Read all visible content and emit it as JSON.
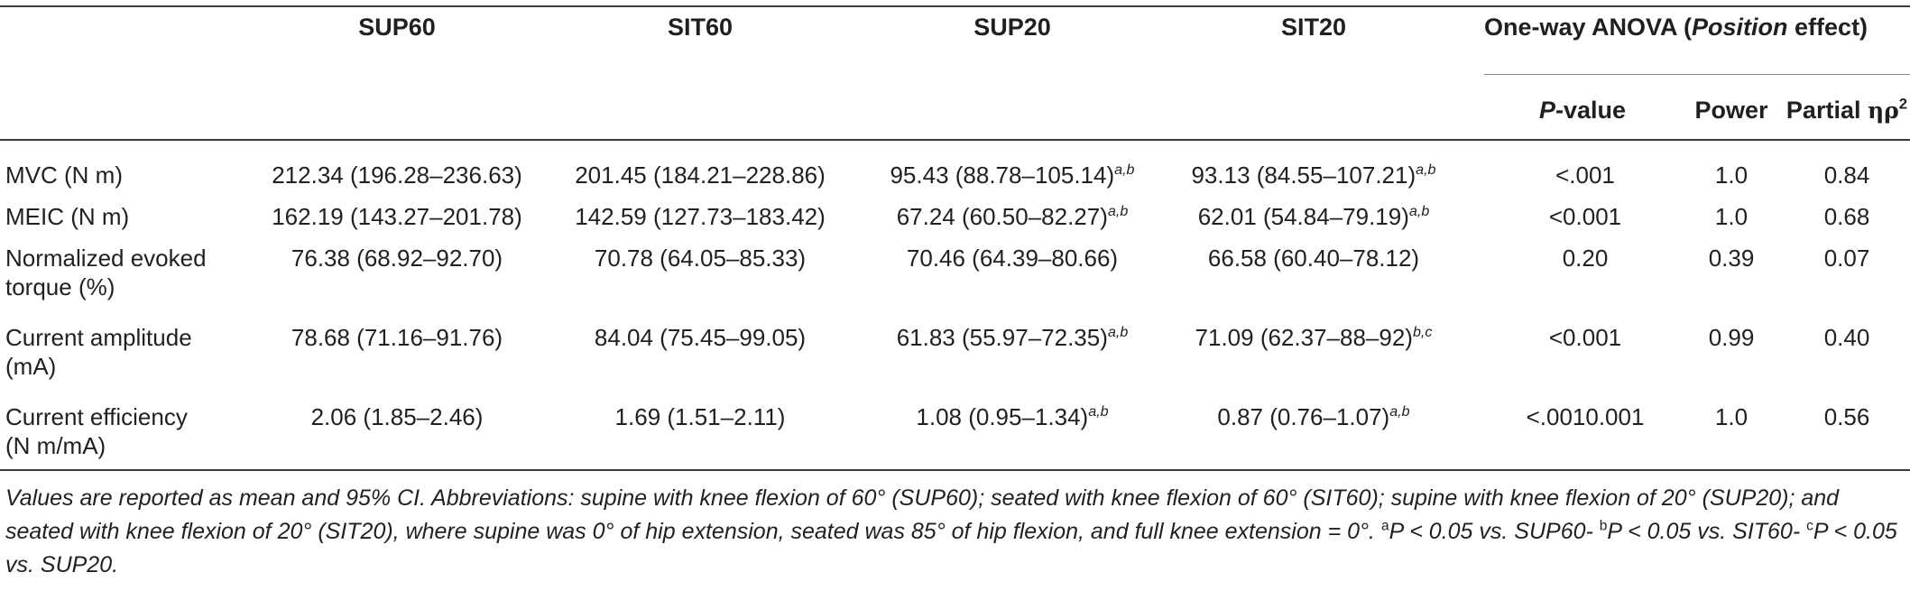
{
  "table": {
    "headers": {
      "sup60": "SUP60",
      "sit60": "SIT60",
      "sup20": "SUP20",
      "sit20": "SIT20",
      "anova_prefix": "One-way ANOVA (",
      "anova_italic": "Position",
      "anova_suffix": " effect)",
      "pvalue_italic": "P",
      "pvalue_suffix": "-value",
      "power": "Power",
      "partial_prefix": "Partial ",
      "partial_symbol": "ηρ",
      "partial_exponent": "2"
    },
    "rows": [
      {
        "label_lines": [
          "MVC (N m)"
        ],
        "sup60": "212.34 (196.28–236.63)",
        "sit60": "201.45 (184.21–228.86)",
        "sup20": "95.43 (88.78–105.14)",
        "sup20_sup": "a,b",
        "sit20": "93.13 (84.55–107.21)",
        "sit20_sup": "a,b",
        "p": "<.001",
        "power": "1.0",
        "eta": "0.84"
      },
      {
        "label_lines": [
          "MEIC (N m)"
        ],
        "sup60": "162.19 (143.27–201.78)",
        "sit60": "142.59 (127.73–183.42)",
        "sup20": "67.24 (60.50–82.27)",
        "sup20_sup": "a,b",
        "sit20": "62.01 (54.84–79.19)",
        "sit20_sup": "a,b",
        "p": "<0.001",
        "power": "1.0",
        "eta": "0.68"
      },
      {
        "label_lines": [
          "Normalized evoked",
          "torque (%)"
        ],
        "sup60": "76.38 (68.92–92.70)",
        "sit60": "70.78 (64.05–85.33)",
        "sup20": "70.46 (64.39–80.66)",
        "sup20_sup": "",
        "sit20": "66.58 (60.40–78.12)",
        "sit20_sup": "",
        "p": "0.20",
        "power": "0.39",
        "eta": "0.07"
      },
      {
        "label_lines": [
          "Current amplitude",
          "(mA)"
        ],
        "sup60": "78.68 (71.16–91.76)",
        "sit60": "84.04 (75.45–99.05)",
        "sup20": "61.83 (55.97–72.35)",
        "sup20_sup": "a,b",
        "sit20": "71.09 (62.37–88–92)",
        "sit20_sup": "b,c",
        "p": "<0.001",
        "power": "0.99",
        "eta": "0.40"
      },
      {
        "label_lines": [
          "Current efficiency",
          "(N m/mA)"
        ],
        "sup60": "2.06 (1.85–2.46)",
        "sit60": "1.69 (1.51–2.11)",
        "sup20": "1.08 (0.95–1.34)",
        "sup20_sup": "a,b",
        "sit20": "0.87 (0.76–1.07)",
        "sit20_sup": "a,b",
        "p": "<.0010.001",
        "power": "1.0",
        "eta": "0.56"
      }
    ]
  },
  "footnote": {
    "main": "Values are reported as mean and 95% CI. Abbreviations: supine with knee flexion of 60° (SUP60); seated with knee flexion of 60° (SIT60); supine with knee flexion of 20° (SUP20); and seated with knee flexion of 20° (SIT20), where supine was 0° of hip extension, seated was 85° of hip flexion, and full knee extension = 0°. ",
    "mark_a": "a",
    "text_a": "P < 0.05 vs. SUP60- ",
    "mark_b": "b",
    "text_b": "P < 0.05 vs. SIT60- ",
    "mark_c": "c",
    "text_c": "P < 0.05 vs. SUP20."
  }
}
